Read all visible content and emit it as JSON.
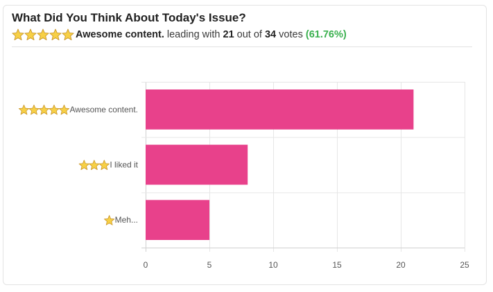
{
  "poll": {
    "question": "What Did You Think About Today's Issue?",
    "leader_label": "Awesome content.",
    "leader_stars": 5,
    "text_leading_with": "leading with",
    "leader_votes": "21",
    "text_out_of": "out of",
    "total_votes": "34",
    "text_votes": "votes",
    "leader_pct": "(61.76%)"
  },
  "colors": {
    "bar": "#e8418b",
    "grid": "#e6e6e6",
    "axis": "#cfcfcf",
    "pct": "#3ab04e",
    "star_fill": "#f7d046",
    "star_stroke": "#c9962b"
  },
  "chart_data": {
    "type": "bar",
    "orientation": "horizontal",
    "categories": [
      "Awesome content.",
      "I liked it",
      "Meh..."
    ],
    "category_stars": [
      5,
      3,
      1
    ],
    "values": [
      21,
      8,
      5
    ],
    "xlim": [
      0,
      25
    ],
    "xticks": [
      0,
      5,
      10,
      15,
      20,
      25
    ],
    "grid": true,
    "title": "",
    "xlabel": "",
    "ylabel": ""
  }
}
